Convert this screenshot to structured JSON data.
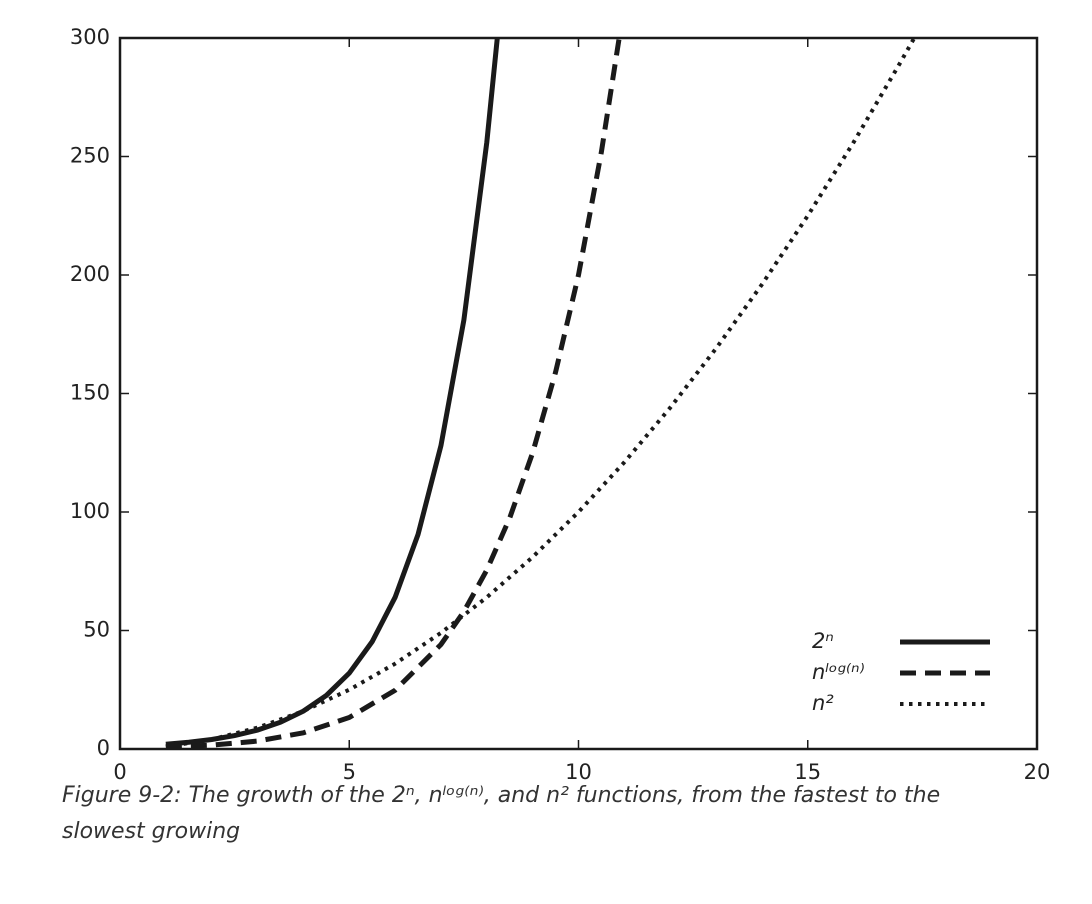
{
  "chart_data": {
    "type": "line",
    "caption": "Figure 9-2: The growth of the 2ⁿ, nˡᵒᵍ⁽ⁿ⁾, and n² functions, from the fastest to the slowest growing",
    "xlim": [
      0,
      20
    ],
    "xticks": [
      0,
      5,
      10,
      15,
      20
    ],
    "ylim": [
      0,
      300
    ],
    "yticks": [
      0,
      50,
      100,
      150,
      200,
      250,
      300
    ],
    "legend": "lower right",
    "series": [
      {
        "name": "2ⁿ",
        "color": "#1a1a1a",
        "style": "solid",
        "x": [
          1,
          1.5,
          2,
          2.5,
          3,
          3.5,
          4,
          4.5,
          5,
          5.5,
          6,
          6.5,
          7,
          7.5,
          8,
          8.25
        ],
        "values": [
          2,
          2.83,
          4,
          5.66,
          8,
          11.3,
          16,
          22.6,
          32,
          45.3,
          64,
          90.5,
          128,
          181,
          256,
          304
        ]
      },
      {
        "name": "nˡᵒᵍ⁽ⁿ⁾",
        "color": "#1a1a1a",
        "style": "dashed",
        "x": [
          1,
          2,
          3,
          4,
          5,
          6,
          7,
          7.5,
          8,
          8.5,
          9,
          9.5,
          10,
          10.5,
          11
        ],
        "values": [
          1,
          1.62,
          3.34,
          6.83,
          13.3,
          24.8,
          44.1,
          58,
          75.5,
          97.5,
          125,
          159,
          200,
          252,
          314
        ]
      },
      {
        "name": "n²",
        "color": "#1a1a1a",
        "style": "dotted",
        "x": [
          1,
          2,
          3,
          4,
          5,
          6,
          7,
          8,
          9,
          10,
          11,
          12,
          13,
          14,
          15,
          16,
          17,
          17.5
        ],
        "values": [
          1,
          4,
          9,
          16,
          25,
          36,
          49,
          64,
          81,
          100,
          121,
          144,
          169,
          196,
          225,
          256,
          289,
          306
        ]
      }
    ]
  }
}
